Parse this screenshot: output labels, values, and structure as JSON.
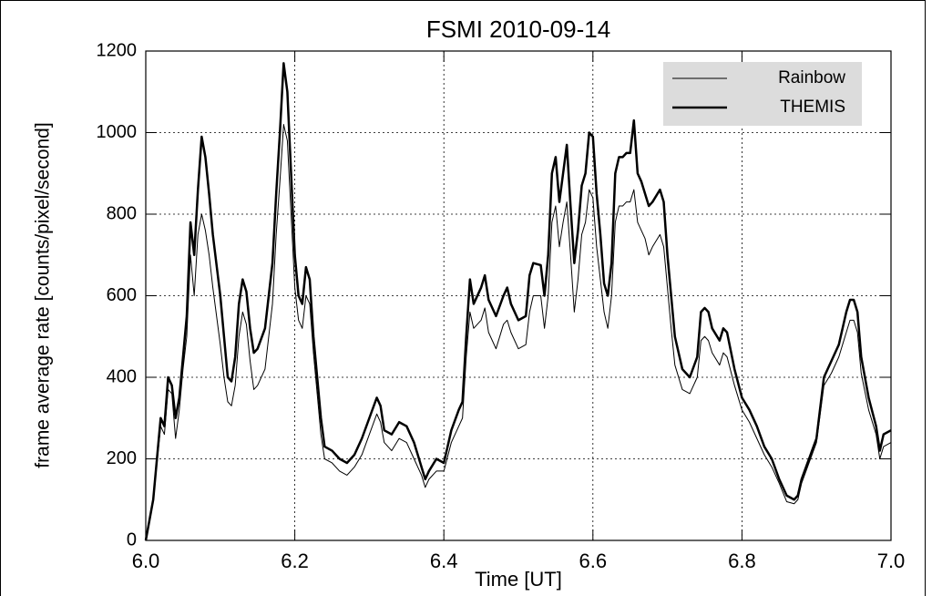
{
  "chart_data": {
    "type": "line",
    "title": "FSMI 2010-09-14",
    "xlabel": "Time [UT]",
    "ylabel": "frame average rate [counts/pixel/second]",
    "x": [
      6.0,
      6.01,
      6.015,
      6.02,
      6.025,
      6.03,
      6.035,
      6.04,
      6.045,
      6.05,
      6.055,
      6.06,
      6.065,
      6.07,
      6.075,
      6.08,
      6.085,
      6.09,
      6.1,
      6.105,
      6.11,
      6.115,
      6.12,
      6.125,
      6.13,
      6.135,
      6.14,
      6.145,
      6.15,
      6.16,
      6.17,
      6.175,
      6.18,
      6.185,
      6.19,
      6.195,
      6.2,
      6.205,
      6.21,
      6.215,
      6.22,
      6.225,
      6.23,
      6.235,
      6.24,
      6.25,
      6.26,
      6.27,
      6.28,
      6.29,
      6.3,
      6.31,
      6.315,
      6.32,
      6.33,
      6.34,
      6.35,
      6.36,
      6.37,
      6.375,
      6.38,
      6.39,
      6.4,
      6.41,
      6.42,
      6.425,
      6.43,
      6.435,
      6.44,
      6.45,
      6.455,
      6.46,
      6.47,
      6.48,
      6.485,
      6.49,
      6.5,
      6.51,
      6.515,
      6.52,
      6.53,
      6.535,
      6.54,
      6.545,
      6.55,
      6.555,
      6.56,
      6.565,
      6.57,
      6.575,
      6.58,
      6.585,
      6.59,
      6.595,
      6.6,
      6.605,
      6.61,
      6.615,
      6.62,
      6.625,
      6.63,
      6.635,
      6.64,
      6.645,
      6.65,
      6.655,
      6.66,
      6.665,
      6.67,
      6.675,
      6.68,
      6.69,
      6.695,
      6.7,
      6.705,
      6.71,
      6.72,
      6.73,
      6.74,
      6.745,
      6.75,
      6.755,
      6.76,
      6.77,
      6.775,
      6.78,
      6.79,
      6.8,
      6.81,
      6.82,
      6.83,
      6.84,
      6.85,
      6.86,
      6.87,
      6.875,
      6.88,
      6.89,
      6.9,
      6.91,
      6.92,
      6.93,
      6.935,
      6.94,
      6.945,
      6.95,
      6.955,
      6.96,
      6.97,
      6.98,
      6.985,
      6.99,
      7.0
    ],
    "series": [
      {
        "name": "Rainbow",
        "color": "#000000",
        "width": 1,
        "values": [
          0,
          100,
          190,
          280,
          260,
          370,
          360,
          250,
          320,
          420,
          500,
          700,
          600,
          750,
          800,
          760,
          700,
          620,
          480,
          400,
          340,
          330,
          380,
          500,
          560,
          530,
          440,
          370,
          380,
          420,
          580,
          750,
          880,
          1020,
          980,
          800,
          620,
          540,
          520,
          600,
          580,
          460,
          360,
          260,
          200,
          190,
          170,
          160,
          180,
          210,
          260,
          310,
          290,
          240,
          220,
          250,
          240,
          200,
          160,
          130,
          150,
          170,
          170,
          240,
          280,
          300,
          450,
          560,
          520,
          540,
          570,
          510,
          470,
          530,
          540,
          510,
          470,
          480,
          560,
          600,
          600,
          520,
          600,
          780,
          820,
          720,
          780,
          830,
          700,
          560,
          640,
          750,
          780,
          860,
          840,
          720,
          640,
          560,
          520,
          600,
          780,
          820,
          820,
          830,
          830,
          860,
          780,
          760,
          740,
          700,
          720,
          750,
          720,
          620,
          520,
          430,
          370,
          360,
          400,
          490,
          500,
          490,
          460,
          430,
          460,
          450,
          380,
          320,
          290,
          250,
          210,
          180,
          140,
          95,
          90,
          100,
          140,
          190,
          240,
          380,
          410,
          450,
          480,
          510,
          540,
          540,
          510,
          410,
          320,
          260,
          200,
          230,
          240
        ]
      },
      {
        "name": "THEMIS",
        "color": "#000000",
        "width": 2.5,
        "values": [
          0,
          100,
          200,
          300,
          280,
          400,
          380,
          300,
          350,
          450,
          550,
          780,
          700,
          860,
          990,
          940,
          850,
          750,
          600,
          500,
          400,
          390,
          450,
          580,
          640,
          610,
          520,
          460,
          470,
          520,
          680,
          850,
          1000,
          1170,
          1100,
          900,
          700,
          600,
          580,
          670,
          640,
          500,
          400,
          300,
          230,
          220,
          200,
          190,
          210,
          250,
          300,
          350,
          330,
          270,
          260,
          290,
          280,
          240,
          180,
          150,
          170,
          200,
          190,
          270,
          320,
          340,
          500,
          640,
          580,
          620,
          650,
          590,
          550,
          600,
          620,
          580,
          540,
          550,
          650,
          680,
          675,
          600,
          700,
          900,
          940,
          830,
          900,
          970,
          820,
          680,
          760,
          870,
          900,
          1000,
          990,
          850,
          750,
          630,
          600,
          680,
          900,
          940,
          940,
          950,
          950,
          1030,
          900,
          880,
          850,
          820,
          830,
          860,
          830,
          700,
          600,
          500,
          420,
          400,
          450,
          560,
          570,
          560,
          520,
          490,
          520,
          510,
          420,
          350,
          320,
          280,
          230,
          200,
          150,
          110,
          100,
          110,
          150,
          200,
          250,
          400,
          440,
          480,
          520,
          560,
          590,
          590,
          560,
          450,
          350,
          280,
          220,
          260,
          270
        ]
      }
    ],
    "xlim": [
      6,
      7
    ],
    "xticks": [
      {
        "value": 6,
        "label": "6.0"
      },
      6.2,
      6.4,
      6.6,
      6.8,
      {
        "value": 7,
        "label": "7.0"
      }
    ],
    "ylim": [
      0,
      1200
    ],
    "yticks": [
      0,
      200,
      400,
      600,
      800,
      1000,
      1200
    ],
    "grid": true,
    "legend": "upper right"
  }
}
